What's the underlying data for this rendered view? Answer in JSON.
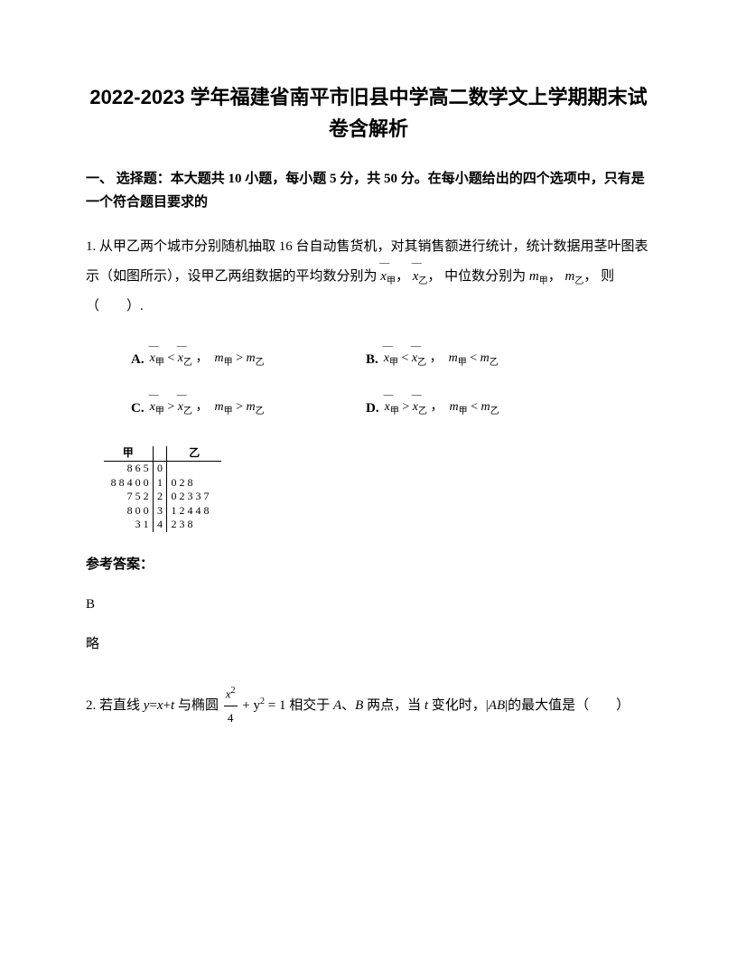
{
  "title": "2022-2023 学年福建省南平市旧县中学高二数学文上学期期末试卷含解析",
  "section_header": "一、 选择题：本大题共 10 小题，每小题 5 分，共 50 分。在每小题给出的四个选项中，只有是一个符合题目要求的",
  "q1": {
    "label": "1. ",
    "text_part1": "从甲乙两个城市分别随机抽取 16 台自动售货机，对其销售额进行统计，统计数据用茎叶图表示（如图所示），设甲乙两组数据的平均数分别为",
    "text_part2": "，",
    "text_part3": "， 中位数分别为",
    "text_part4": "，",
    "text_part5": "， 则 （　　）.",
    "means": {
      "x1_sub": "甲",
      "x2_sub": "乙"
    },
    "medians": {
      "m1_sub": "甲",
      "m2_sub": "乙"
    },
    "options": {
      "A_label": "A.",
      "B_label": "B.",
      "C_label": "C.",
      "D_label": "D."
    },
    "stem_leaf": {
      "header_left": "甲",
      "header_right": "乙",
      "rows": [
        {
          "left": "8 6 5",
          "stem": "0",
          "right": ""
        },
        {
          "left": "8 8 4 0 0",
          "stem": "1",
          "right": "0 2 8"
        },
        {
          "left": "7 5 2",
          "stem": "2",
          "right": "0 2 3 3 7"
        },
        {
          "left": "8 0 0",
          "stem": "3",
          "right": "1 2 4 4 8"
        },
        {
          "left": "3 1",
          "stem": "4",
          "right": "2 3 8"
        }
      ]
    },
    "answer_label": "参考答案：",
    "answer": "B",
    "brief": "略"
  },
  "q2": {
    "label": "2. ",
    "text_p1": "若直线 ",
    "line_eq_y": "y",
    "line_eq_eq": "=",
    "line_eq_x": "x",
    "line_eq_plus": "+",
    "line_eq_t": "t",
    "text_p2": " 与椭圆 ",
    "ellipse_num": "x",
    "ellipse_den": "4",
    "ellipse_rest": "+ y",
    "ellipse_eq": " = 1",
    "text_p3": " 相交于 ",
    "pA": "A",
    "text_p4": "、",
    "pB": "B",
    "text_p5": " 两点，当 ",
    "var_t": "t",
    "text_p6": " 变化时，|",
    "AB": "AB",
    "text_p7": "|的最大值是（　　）"
  },
  "colors": {
    "text": "#000000",
    "background": "#ffffff"
  },
  "fontsize": {
    "title": 22,
    "body": 15,
    "math": 13,
    "stemleaf": 12
  }
}
